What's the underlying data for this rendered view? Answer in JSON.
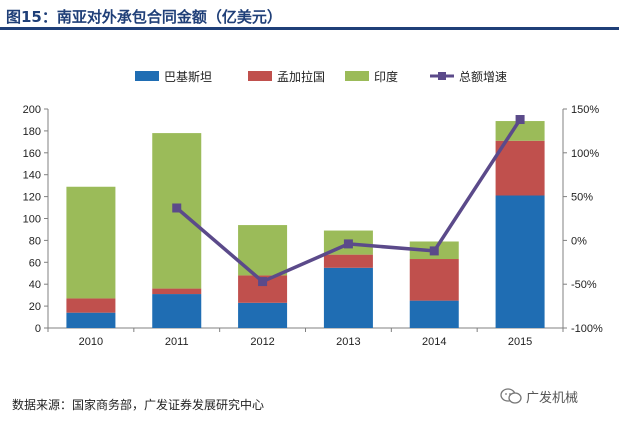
{
  "title": "图15：南亚对外承包合同金额（亿美元）",
  "source": "数据来源：国家商务部，广发证券发展研究中心",
  "watermark": "广发机械",
  "colors": {
    "title": "#1f3f78",
    "pakistan": "#1f6db3",
    "bangladesh": "#c0504d",
    "india": "#9bbb59",
    "growth": "#5b4a8a"
  },
  "chart_data": {
    "type": "bar",
    "stacked": true,
    "categories": [
      "2010",
      "2011",
      "2012",
      "2013",
      "2014",
      "2015"
    ],
    "series": [
      {
        "name": "巴基斯坦",
        "type": "bar",
        "color": "#1f6db3",
        "values": [
          14,
          31,
          23,
          55,
          25,
          121
        ]
      },
      {
        "name": "孟加拉国",
        "type": "bar",
        "color": "#c0504d",
        "values": [
          13,
          5,
          25,
          12,
          38,
          50
        ]
      },
      {
        "name": "印度",
        "type": "bar",
        "color": "#9bbb59",
        "values": [
          102,
          142,
          46,
          22,
          16,
          18
        ]
      },
      {
        "name": "总额增速",
        "type": "line",
        "axis": "right",
        "color": "#5b4a8a",
        "values": [
          null,
          37,
          -47,
          -4,
          -12,
          138
        ]
      }
    ],
    "ylim": [
      0,
      200
    ],
    "yticks": [
      "0",
      "20",
      "40",
      "60",
      "80",
      "100",
      "120",
      "140",
      "160",
      "180",
      "200"
    ],
    "y2lim": [
      -100,
      150
    ],
    "y2ticks": [
      "-100%",
      "-50%",
      "0%",
      "50%",
      "100%",
      "150%"
    ],
    "legend_position": "top",
    "grid": false
  }
}
